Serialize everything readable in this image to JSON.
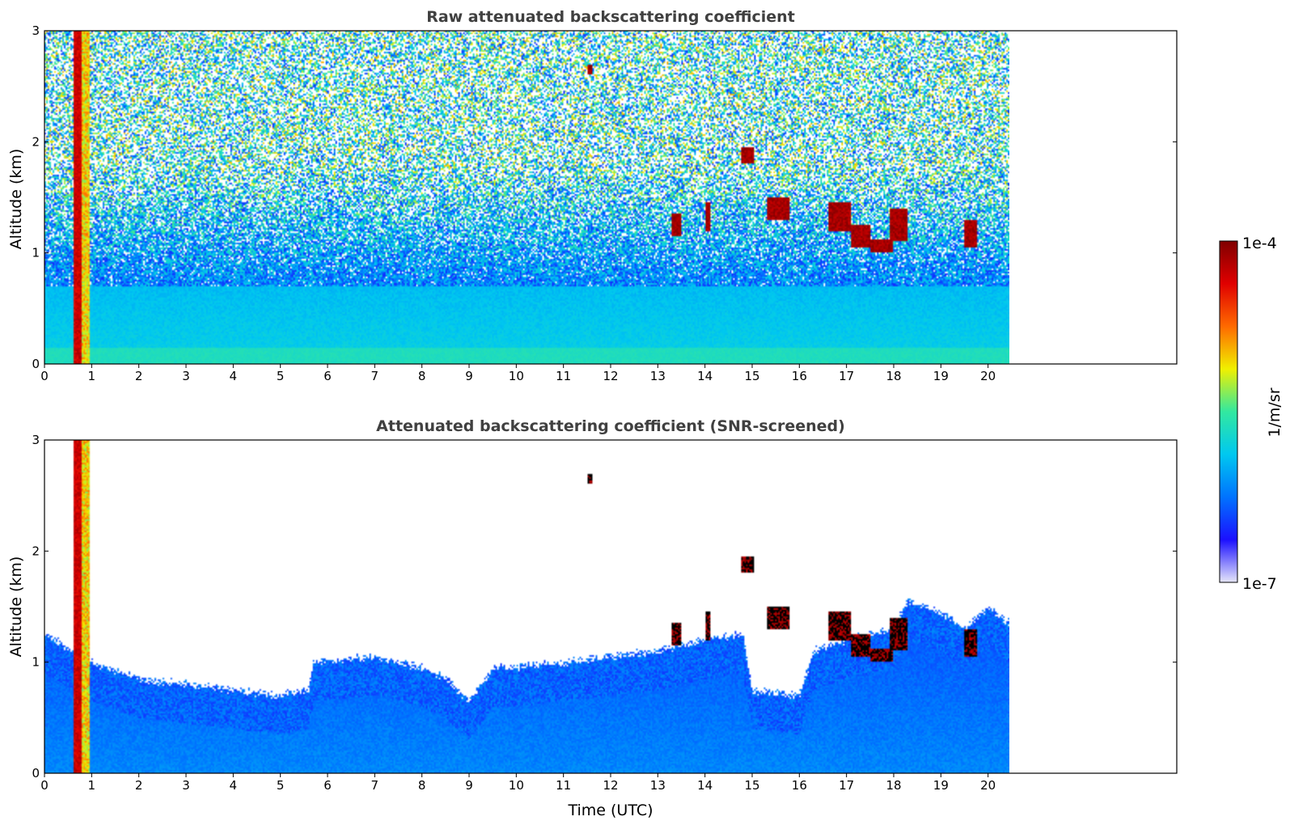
{
  "chart_data": [
    {
      "type": "heatmap",
      "title": "Raw attenuated backscattering coefficient",
      "xlabel": "",
      "ylabel": "Altitude (km)",
      "xlim": [
        0,
        24
      ],
      "ylim": [
        0,
        3
      ],
      "data_x_range": [
        0,
        20.45
      ],
      "xticks": [
        "0",
        "1",
        "2",
        "3",
        "4",
        "5",
        "6",
        "7",
        "8",
        "9",
        "10",
        "11",
        "12",
        "13",
        "14",
        "15",
        "16",
        "17",
        "18",
        "19",
        "20"
      ],
      "yticks": [
        "0",
        "1",
        "2",
        "3"
      ],
      "screened": false,
      "clouds": [
        {
          "t0": 13.3,
          "t1": 13.5,
          "z0": 1.15,
          "z1": 1.35
        },
        {
          "t0": 14.0,
          "t1": 14.1,
          "z0": 1.2,
          "z1": 1.45
        },
        {
          "t0": 14.75,
          "t1": 15.05,
          "z0": 1.8,
          "z1": 1.95
        },
        {
          "t0": 15.3,
          "t1": 15.8,
          "z0": 1.3,
          "z1": 1.5
        },
        {
          "t0": 16.6,
          "t1": 17.1,
          "z0": 1.2,
          "z1": 1.45
        },
        {
          "t0": 17.1,
          "t1": 17.5,
          "z0": 1.05,
          "z1": 1.25
        },
        {
          "t0": 17.5,
          "t1": 18.0,
          "z0": 1.0,
          "z1": 1.12
        },
        {
          "t0": 17.9,
          "t1": 18.3,
          "z0": 1.1,
          "z1": 1.4
        },
        {
          "t0": 19.5,
          "t1": 19.75,
          "z0": 1.05,
          "z1": 1.3
        },
        {
          "t0": 11.5,
          "t1": 11.6,
          "z0": 2.6,
          "z1": 2.7
        }
      ],
      "plume": {
        "t0": 0.6,
        "t1": 0.95
      }
    },
    {
      "type": "heatmap",
      "title": "Attenuated backscattering coefficient (SNR-screened)",
      "xlabel": "Time (UTC)",
      "ylabel": "Altitude (km)",
      "xlim": [
        0,
        24
      ],
      "ylim": [
        0,
        3
      ],
      "data_x_range": [
        0,
        20.45
      ],
      "xticks": [
        "0",
        "1",
        "2",
        "3",
        "4",
        "5",
        "6",
        "7",
        "8",
        "9",
        "10",
        "11",
        "12",
        "13",
        "14",
        "15",
        "16",
        "17",
        "18",
        "19",
        "20"
      ],
      "yticks": [
        "0",
        "1",
        "2",
        "3"
      ],
      "screened": true,
      "boundary_layer_top_km": [
        [
          0,
          1.25
        ],
        [
          1,
          1.0
        ],
        [
          2,
          0.85
        ],
        [
          3,
          0.8
        ],
        [
          4,
          0.75
        ],
        [
          5,
          0.7
        ],
        [
          5.6,
          0.75
        ],
        [
          5.7,
          1.0
        ],
        [
          7,
          1.05
        ],
        [
          8,
          0.95
        ],
        [
          8.5,
          0.85
        ],
        [
          9,
          0.65
        ],
        [
          9.5,
          0.95
        ],
        [
          10,
          0.95
        ],
        [
          11,
          1.0
        ],
        [
          12,
          1.05
        ],
        [
          13,
          1.1
        ],
        [
          14,
          1.2
        ],
        [
          14.8,
          1.25
        ],
        [
          15,
          0.75
        ],
        [
          16,
          0.7
        ],
        [
          16.3,
          1.1
        ],
        [
          17,
          1.2
        ],
        [
          18,
          1.3
        ],
        [
          18.3,
          1.55
        ],
        [
          19,
          1.45
        ],
        [
          19.5,
          1.3
        ],
        [
          20,
          1.5
        ],
        [
          20.45,
          1.35
        ]
      ],
      "clouds": [
        {
          "t0": 13.3,
          "t1": 13.5,
          "z0": 1.15,
          "z1": 1.35
        },
        {
          "t0": 14.0,
          "t1": 14.1,
          "z0": 1.2,
          "z1": 1.45
        },
        {
          "t0": 14.75,
          "t1": 15.05,
          "z0": 1.8,
          "z1": 1.95
        },
        {
          "t0": 15.3,
          "t1": 15.8,
          "z0": 1.3,
          "z1": 1.5
        },
        {
          "t0": 16.6,
          "t1": 17.1,
          "z0": 1.2,
          "z1": 1.45
        },
        {
          "t0": 17.1,
          "t1": 17.5,
          "z0": 1.05,
          "z1": 1.25
        },
        {
          "t0": 17.5,
          "t1": 18.0,
          "z0": 1.0,
          "z1": 1.12
        },
        {
          "t0": 17.9,
          "t1": 18.3,
          "z0": 1.1,
          "z1": 1.4
        },
        {
          "t0": 19.5,
          "t1": 19.75,
          "z0": 1.05,
          "z1": 1.3
        },
        {
          "t0": 11.5,
          "t1": 11.6,
          "z0": 2.6,
          "z1": 2.7
        }
      ],
      "plume": {
        "t0": 0.6,
        "t1": 0.95
      }
    }
  ],
  "colorbar": {
    "label": "1/m/sr",
    "min_label": "1e-7",
    "max_label": "1e-4",
    "colormap": [
      "#e6e6fa",
      "#1b10ff",
      "#0073ff",
      "#00c8f0",
      "#32e8a0",
      "#f0f000",
      "#ff6a00",
      "#e00000",
      "#800000"
    ],
    "scale": "log"
  }
}
